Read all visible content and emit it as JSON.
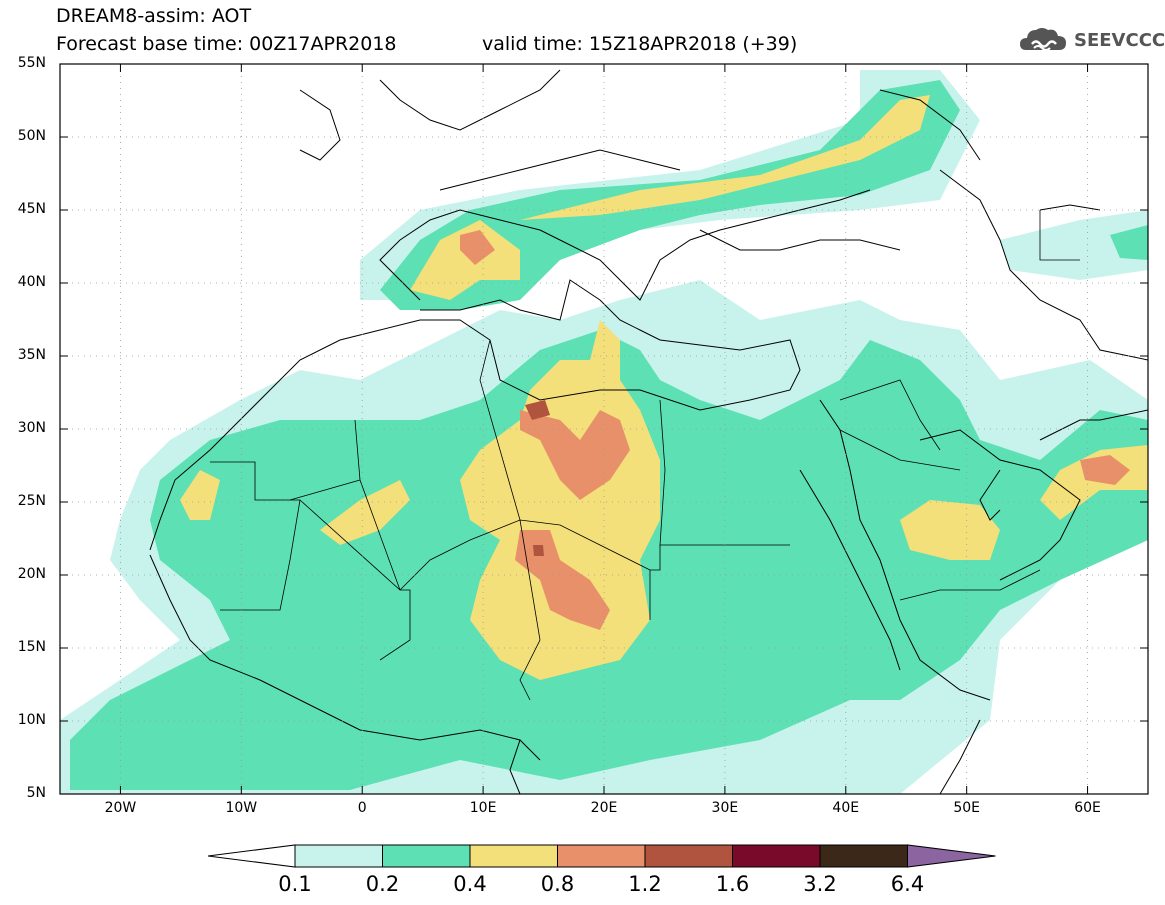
{
  "header": {
    "title": "DREAM8-assim: AOT",
    "base_time": "Forecast base time: 00Z17APR2018",
    "valid_time": "valid time: 15Z18APR2018 (+39)"
  },
  "logo": {
    "text": "SEEVCCC",
    "icon": "cloud-icon"
  },
  "map": {
    "lon_range": [
      -25,
      65
    ],
    "lat_range": [
      5,
      55
    ],
    "lat_ticks": [
      {
        "value": 55,
        "label": "55N"
      },
      {
        "value": 50,
        "label": "50N"
      },
      {
        "value": 45,
        "label": "45N"
      },
      {
        "value": 40,
        "label": "40N"
      },
      {
        "value": 35,
        "label": "35N"
      },
      {
        "value": 30,
        "label": "30N"
      },
      {
        "value": 25,
        "label": "25N"
      },
      {
        "value": 20,
        "label": "20N"
      },
      {
        "value": 15,
        "label": "15N"
      },
      {
        "value": 10,
        "label": "10N"
      },
      {
        "value": 5,
        "label": "5N"
      }
    ],
    "lon_ticks": [
      {
        "value": -20,
        "label": "20W"
      },
      {
        "value": -10,
        "label": "10W"
      },
      {
        "value": 0,
        "label": "0"
      },
      {
        "value": 10,
        "label": "10E"
      },
      {
        "value": 20,
        "label": "20E"
      },
      {
        "value": 30,
        "label": "30E"
      },
      {
        "value": 40,
        "label": "40E"
      },
      {
        "value": 50,
        "label": "50E"
      },
      {
        "value": 60,
        "label": "60E"
      }
    ],
    "grid": true
  },
  "legend": {
    "boundaries": [
      "0.1",
      "0.2",
      "0.4",
      "0.8",
      "1.2",
      "1.6",
      "3.2",
      "6.4"
    ],
    "colors": [
      "#ffffff",
      "#c8f2ec",
      "#5ce0b4",
      "#f4e07a",
      "#e8906a",
      "#b05440",
      "#7a0a2a",
      "#3c2818",
      "#8c64a0"
    ]
  }
}
